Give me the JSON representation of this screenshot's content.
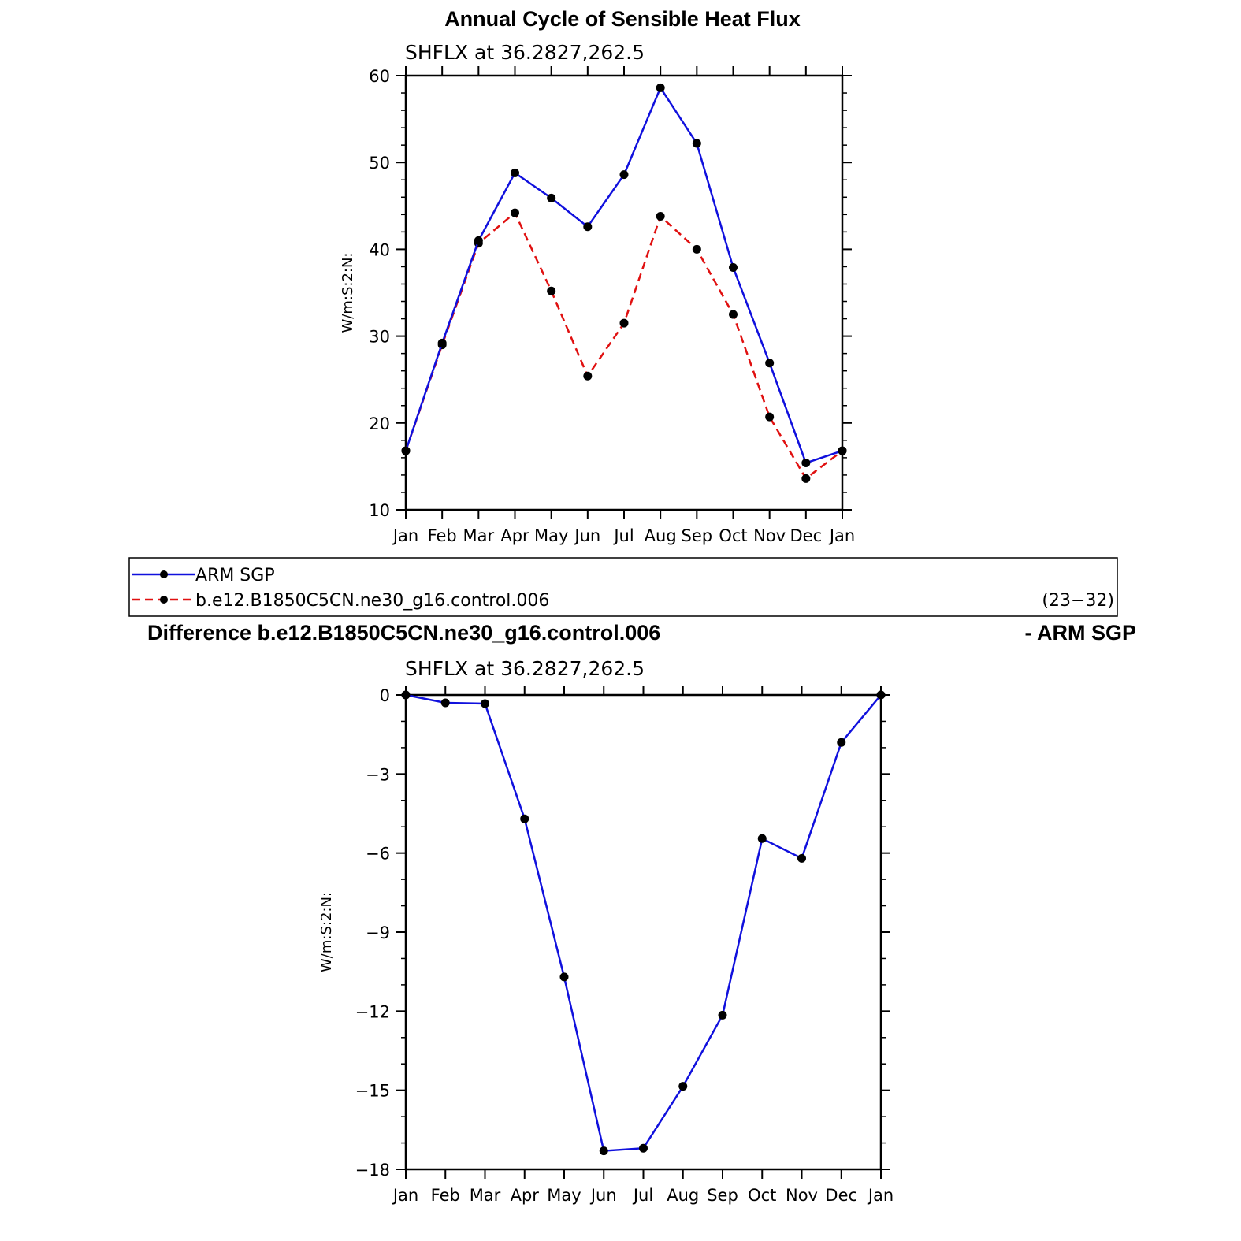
{
  "figure": {
    "title": "Annual Cycle of Sensible Heat Flux",
    "subtitle": "SHFLX at 36.2827,262.5",
    "diff_title_left": "Difference b.e12.B1850C5CN.ne30_g16.control.006",
    "diff_title_right": "- ARM SGP",
    "diff_subtitle": "SHFLX at 36.2827,262.5"
  },
  "legend": {
    "items": [
      {
        "label": "ARM SGP",
        "color": "#1010dd",
        "dash": "solid"
      },
      {
        "label": "b.e12.B1850C5CN.ne30_g16.control.006",
        "color": "#e01010",
        "dash": "dashed"
      }
    ],
    "note": "(23−32)"
  },
  "chart_data": [
    {
      "type": "line",
      "title": "Annual Cycle of Sensible Heat Flux",
      "subtitle": "SHFLX at 36.2827,262.5",
      "xlabel": "",
      "ylabel": "W/m:S:2:N:",
      "categories": [
        "Jan",
        "Feb",
        "Mar",
        "Apr",
        "May",
        "Jun",
        "Jul",
        "Aug",
        "Sep",
        "Oct",
        "Nov",
        "Dec",
        "Jan"
      ],
      "ylim": [
        10,
        60
      ],
      "yticks": [
        "10",
        "20",
        "30",
        "40",
        "50",
        "60"
      ],
      "series": [
        {
          "name": "ARM SGP",
          "color": "#1010dd",
          "dash": "solid",
          "values": [
            16.8,
            29.2,
            41.0,
            48.8,
            45.9,
            42.6,
            48.6,
            58.6,
            52.2,
            37.9,
            26.9,
            15.4,
            16.8
          ]
        },
        {
          "name": "b.e12.B1850C5CN.ne30_g16.control.006",
          "color": "#e01010",
          "dash": "dashed",
          "values": [
            16.8,
            29.0,
            40.7,
            44.2,
            35.2,
            25.4,
            31.5,
            43.8,
            40.0,
            32.5,
            20.7,
            13.6,
            16.8
          ]
        }
      ]
    },
    {
      "type": "line",
      "title": "Difference b.e12.B1850C5CN.ne30_g16.control.006 - ARM SGP",
      "subtitle": "SHFLX at 36.2827,262.5",
      "xlabel": "",
      "ylabel": "W/m:S:2:N:",
      "categories": [
        "Jan",
        "Feb",
        "Mar",
        "Apr",
        "May",
        "Jun",
        "Jul",
        "Aug",
        "Sep",
        "Oct",
        "Nov",
        "Dec",
        "Jan"
      ],
      "ylim": [
        -18,
        0
      ],
      "yticks": [
        "−18",
        "−15",
        "−12",
        "−9",
        "−6",
        "−3",
        "0"
      ],
      "series": [
        {
          "color": "#1010dd",
          "dash": "solid",
          "values": [
            0,
            -0.3,
            -0.33,
            -4.7,
            -10.7,
            -17.3,
            -17.2,
            -14.85,
            -12.15,
            -5.45,
            -6.2,
            -1.8,
            0
          ]
        }
      ]
    }
  ]
}
